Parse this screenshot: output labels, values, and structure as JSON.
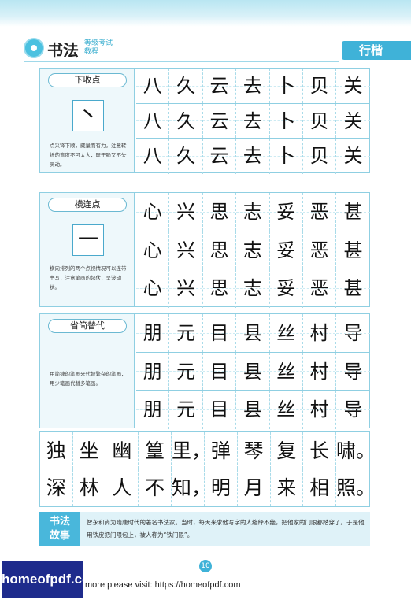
{
  "header": {
    "brand": "书法",
    "brand_sub_line1": "等级考试",
    "brand_sub_line2": "教程",
    "section": "行楷"
  },
  "panels": [
    {
      "title": "下收点",
      "sample": "丶",
      "note": "点采锋下顺，藏量而有力。注意转折的弯度不可太大，既干脆又不失灵动。",
      "chars": [
        "八",
        "久",
        "云",
        "去",
        "卜",
        "贝",
        "关"
      ]
    },
    {
      "title": "横连点",
      "sample": "一",
      "note": "横向排列的两个点视情况可以连带书写，注意笔画的起伏，呈波动状。",
      "chars": [
        "心",
        "兴",
        "思",
        "志",
        "妥",
        "恶",
        "甚"
      ]
    },
    {
      "title": "省简替代",
      "sample": "",
      "note": "用简捷的笔画来代替繁杂的笔画，用少笔画代替多笔画。",
      "chars": [
        "朋",
        "元",
        "目",
        "县",
        "丝",
        "村",
        "导"
      ]
    }
  ],
  "practice": {
    "row1": [
      "独",
      "坐",
      "幽",
      "篁",
      "里，",
      "弹",
      "琴",
      "复",
      "长",
      "啸。"
    ],
    "row2": [
      "深",
      "林",
      "人",
      "不",
      "知，",
      "明",
      "月",
      "来",
      "相",
      "照。"
    ]
  },
  "story": {
    "badge_line1": "书法",
    "badge_line2": "故事",
    "text": "智永和尚为隋唐时代的著名书法家。当时，每天来求他写字的人络绎不绝，把他家的门限都踏穿了。于是他用铁皮把门限包上，被人称为“铁门限”。"
  },
  "page_number": "10",
  "footer": {
    "logo": "homeofpdf.com",
    "link": "more please visit: https://homeofpdf.com"
  }
}
